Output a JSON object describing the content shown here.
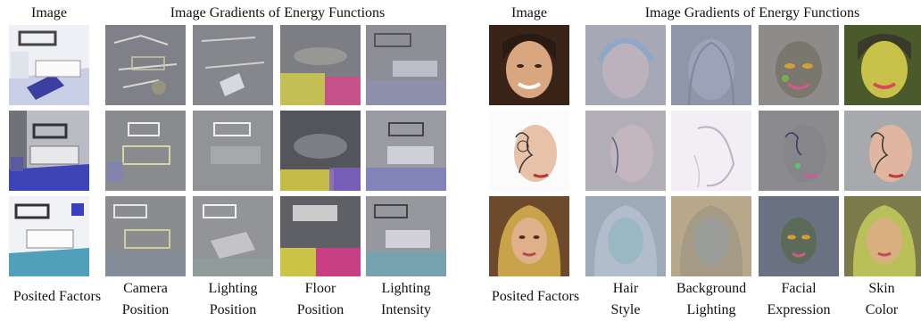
{
  "left_panel": {
    "image_header": "Image",
    "gradients_header": "Image Gradients of Energy Functions",
    "row_label": "Posited Factors",
    "factors": [
      {
        "line1": "Camera",
        "line2": "Position"
      },
      {
        "line1": "Lighting",
        "line2": "Position"
      },
      {
        "line1": "Floor",
        "line2": "Position"
      },
      {
        "line1": "Lighting",
        "line2": "Intensity"
      }
    ]
  },
  "right_panel": {
    "image_header": "Image",
    "gradients_header": "Image Gradients of Energy Functions",
    "row_label": "Posited Factors",
    "factors": [
      {
        "line1": "Hair",
        "line2": "Style"
      },
      {
        "line1": "Background",
        "line2": "Lighting"
      },
      {
        "line1": "Facial",
        "line2": "Expression"
      },
      {
        "line1": "Skin",
        "line2": "Color"
      }
    ]
  },
  "palette": {
    "gray": "#8c8c8c",
    "room_white": "#e9ecf2",
    "floor_blue": "#5a63c8",
    "pink": "#d24a8a",
    "yellow": "#d8d24a",
    "skin": "#d9a77f",
    "hair_dark": "#2a1a14",
    "hair_blonde": "#c9a24a"
  }
}
